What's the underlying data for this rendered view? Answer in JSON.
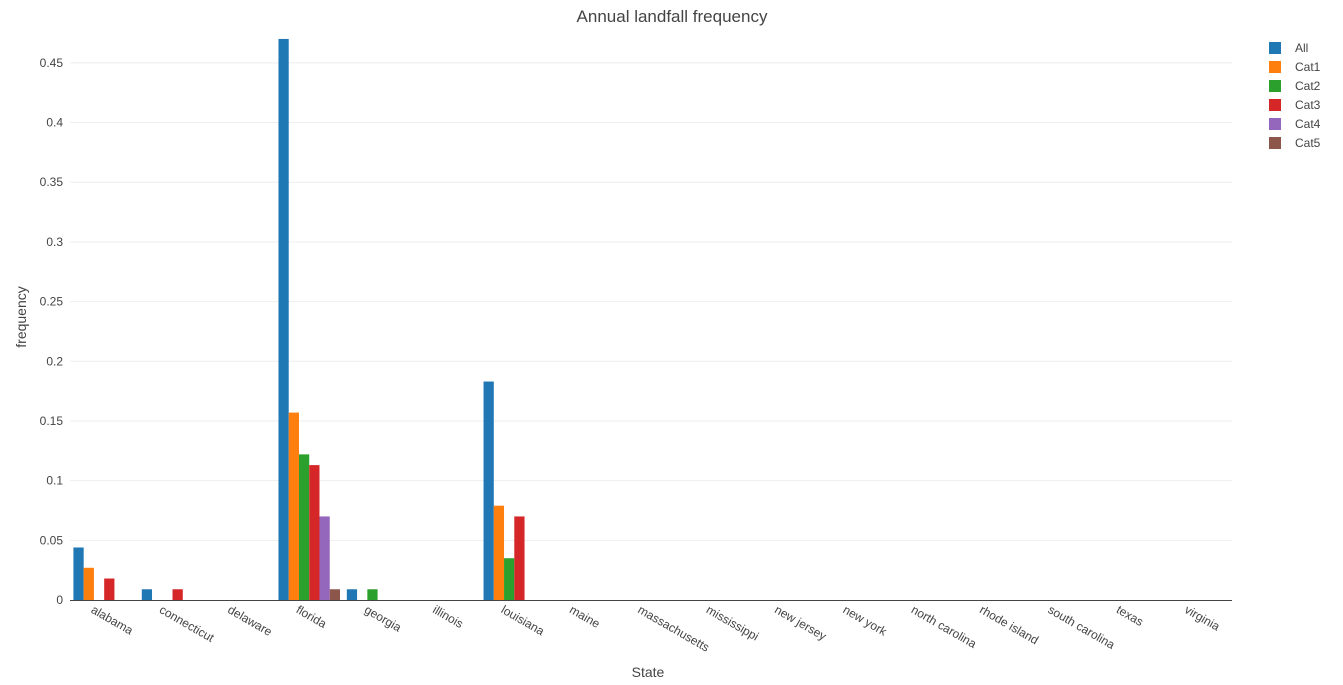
{
  "chart_data": {
    "type": "bar",
    "title": "Annual landfall frequency",
    "xlabel": "State",
    "ylabel": "frequency",
    "ylim": [
      0,
      0.48
    ],
    "yticks": [
      {
        "value": 0,
        "label": "0"
      },
      {
        "value": 0.05,
        "label": "0.05"
      },
      {
        "value": 0.1,
        "label": "0.1"
      },
      {
        "value": 0.15,
        "label": "0.15"
      },
      {
        "value": 0.2,
        "label": "0.2"
      },
      {
        "value": 0.25,
        "label": "0.25"
      },
      {
        "value": 0.3,
        "label": "0.3"
      },
      {
        "value": 0.35,
        "label": "0.35"
      },
      {
        "value": 0.4,
        "label": "0.4"
      },
      {
        "value": 0.45,
        "label": "0.45"
      }
    ],
    "grid": true,
    "legend_position": "top-right",
    "categories": [
      "alabama",
      "connecticut",
      "delaware",
      "florida",
      "georgia",
      "illinois",
      "louisiana",
      "maine",
      "massachusetts",
      "mississippi",
      "new jersey",
      "new york",
      "north carolina",
      "rhode island",
      "south carolina",
      "texas",
      "virginia"
    ],
    "series": [
      {
        "name": "All",
        "color": "#1f77b4",
        "values": [
          0.044,
          0.009,
          0,
          0.47,
          0.009,
          0,
          0.183,
          0,
          0,
          0,
          0,
          0,
          0,
          0,
          0,
          0,
          0
        ]
      },
      {
        "name": "Cat1",
        "color": "#ff7f0e",
        "values": [
          0.027,
          0,
          0,
          0.157,
          0,
          0,
          0.079,
          0,
          0,
          0,
          0,
          0,
          0,
          0,
          0,
          0,
          0
        ]
      },
      {
        "name": "Cat2",
        "color": "#2ca02c",
        "values": [
          0,
          0,
          0,
          0.122,
          0.009,
          0,
          0.035,
          0,
          0,
          0,
          0,
          0,
          0,
          0,
          0,
          0,
          0
        ]
      },
      {
        "name": "Cat3",
        "color": "#d62728",
        "values": [
          0.018,
          0.009,
          0,
          0.113,
          0,
          0,
          0.07,
          0,
          0,
          0,
          0,
          0,
          0,
          0,
          0,
          0,
          0
        ]
      },
      {
        "name": "Cat4",
        "color": "#9467bd",
        "values": [
          0,
          0,
          0,
          0.07,
          0,
          0,
          0,
          0,
          0,
          0,
          0,
          0,
          0,
          0,
          0,
          0,
          0
        ]
      },
      {
        "name": "Cat5",
        "color": "#8c564b",
        "values": [
          0,
          0,
          0,
          0.009,
          0,
          0,
          0,
          0,
          0,
          0,
          0,
          0,
          0,
          0,
          0,
          0,
          0
        ]
      }
    ]
  }
}
